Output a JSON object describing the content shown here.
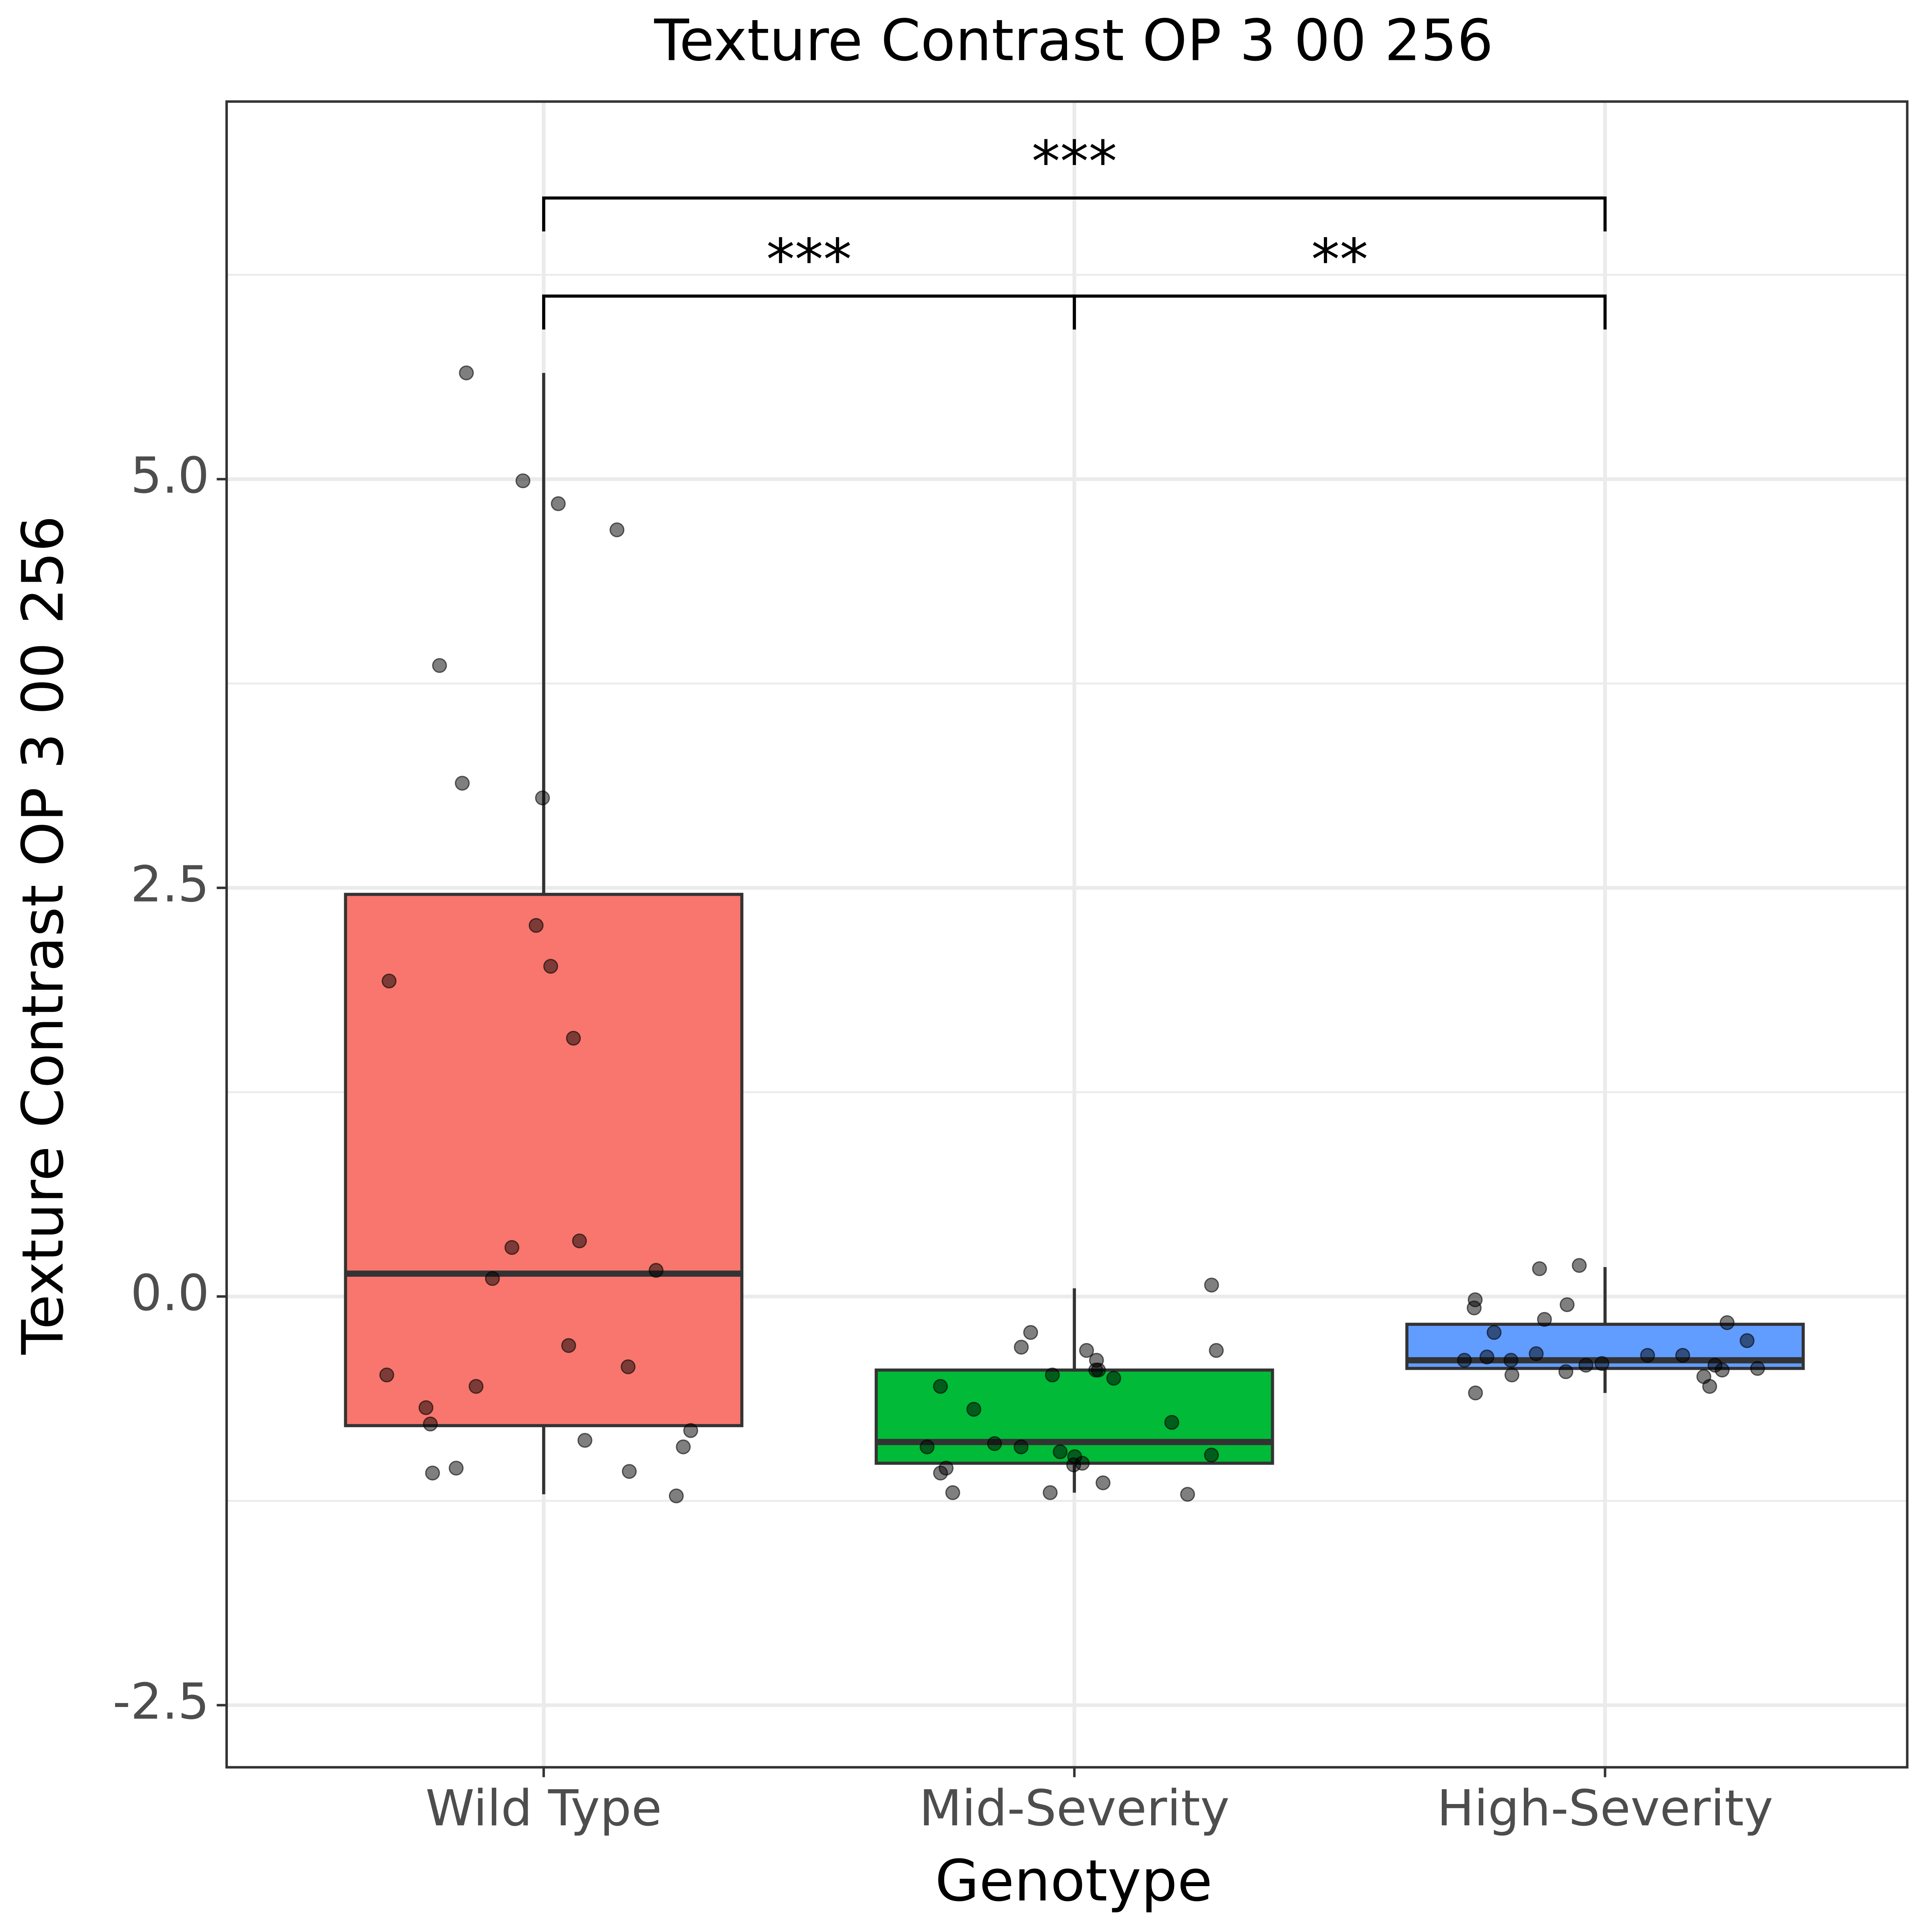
{
  "chart_data": {
    "type": "box",
    "title": "Texture Contrast OP 3 00 256",
    "x_label": "Genotype",
    "y_label": "Texture Contrast OP 3 00 256",
    "categories": [
      "Wild Type",
      "Mid-Severity",
      "High-Severity"
    ],
    "colors": [
      "#F8766D",
      "#00BA38",
      "#619CFF"
    ],
    "ylim": [
      -2.88,
      7.31
    ],
    "yticks": [
      {
        "value": -2.5,
        "label": "-2.5"
      },
      {
        "value": 0,
        "label": "0.0"
      },
      {
        "value": 2.5,
        "label": "2.5"
      },
      {
        "value": 5,
        "label": "5.0"
      }
    ],
    "grid": true,
    "boxes": [
      {
        "low": -1.21,
        "q1": -0.79,
        "median": 0.14,
        "q3": 2.46,
        "high": 5.65,
        "points": [
          5.65,
          4.99,
          4.85,
          4.69,
          3.86,
          3.14,
          3.05,
          2.27,
          2.02,
          1.93,
          1.58,
          0.34,
          0.3,
          0.16,
          0.11,
          -0.3,
          -0.43,
          -0.48,
          -0.55,
          -0.68,
          -0.78,
          -0.82,
          -0.88,
          -0.92,
          -1.05,
          -1.07,
          -1.08,
          -1.22
        ]
      },
      {
        "low": -1.2,
        "q1": -1.02,
        "median": -0.89,
        "q3": -0.45,
        "high": 0.05,
        "points": [
          0.07,
          -0.22,
          -0.31,
          -0.33,
          -0.33,
          -0.39,
          -0.45,
          -0.45,
          -0.48,
          -0.5,
          -0.55,
          -0.69,
          -0.77,
          -0.9,
          -0.92,
          -0.92,
          -0.95,
          -0.97,
          -0.98,
          -1.02,
          -1.03,
          -1.05,
          -1.08,
          -1.14,
          -1.2,
          -1.2,
          -1.21
        ]
      },
      {
        "low": -0.59,
        "q1": -0.44,
        "median": -0.39,
        "q3": -0.17,
        "high": 0.18,
        "points": [
          0.19,
          0.17,
          -0.02,
          -0.05,
          -0.07,
          -0.14,
          -0.16,
          -0.22,
          -0.27,
          -0.35,
          -0.36,
          -0.36,
          -0.37,
          -0.39,
          -0.39,
          -0.41,
          -0.42,
          -0.42,
          -0.44,
          -0.45,
          -0.46,
          -0.48,
          -0.49,
          -0.55,
          -0.59
        ]
      }
    ],
    "annotations": [
      {
        "groups": [
          0,
          1
        ],
        "y": 6.12,
        "label": "***"
      },
      {
        "groups": [
          1,
          2
        ],
        "y": 6.12,
        "label": "**"
      },
      {
        "groups": [
          0,
          2
        ],
        "y": 6.72,
        "label": "***"
      }
    ]
  }
}
